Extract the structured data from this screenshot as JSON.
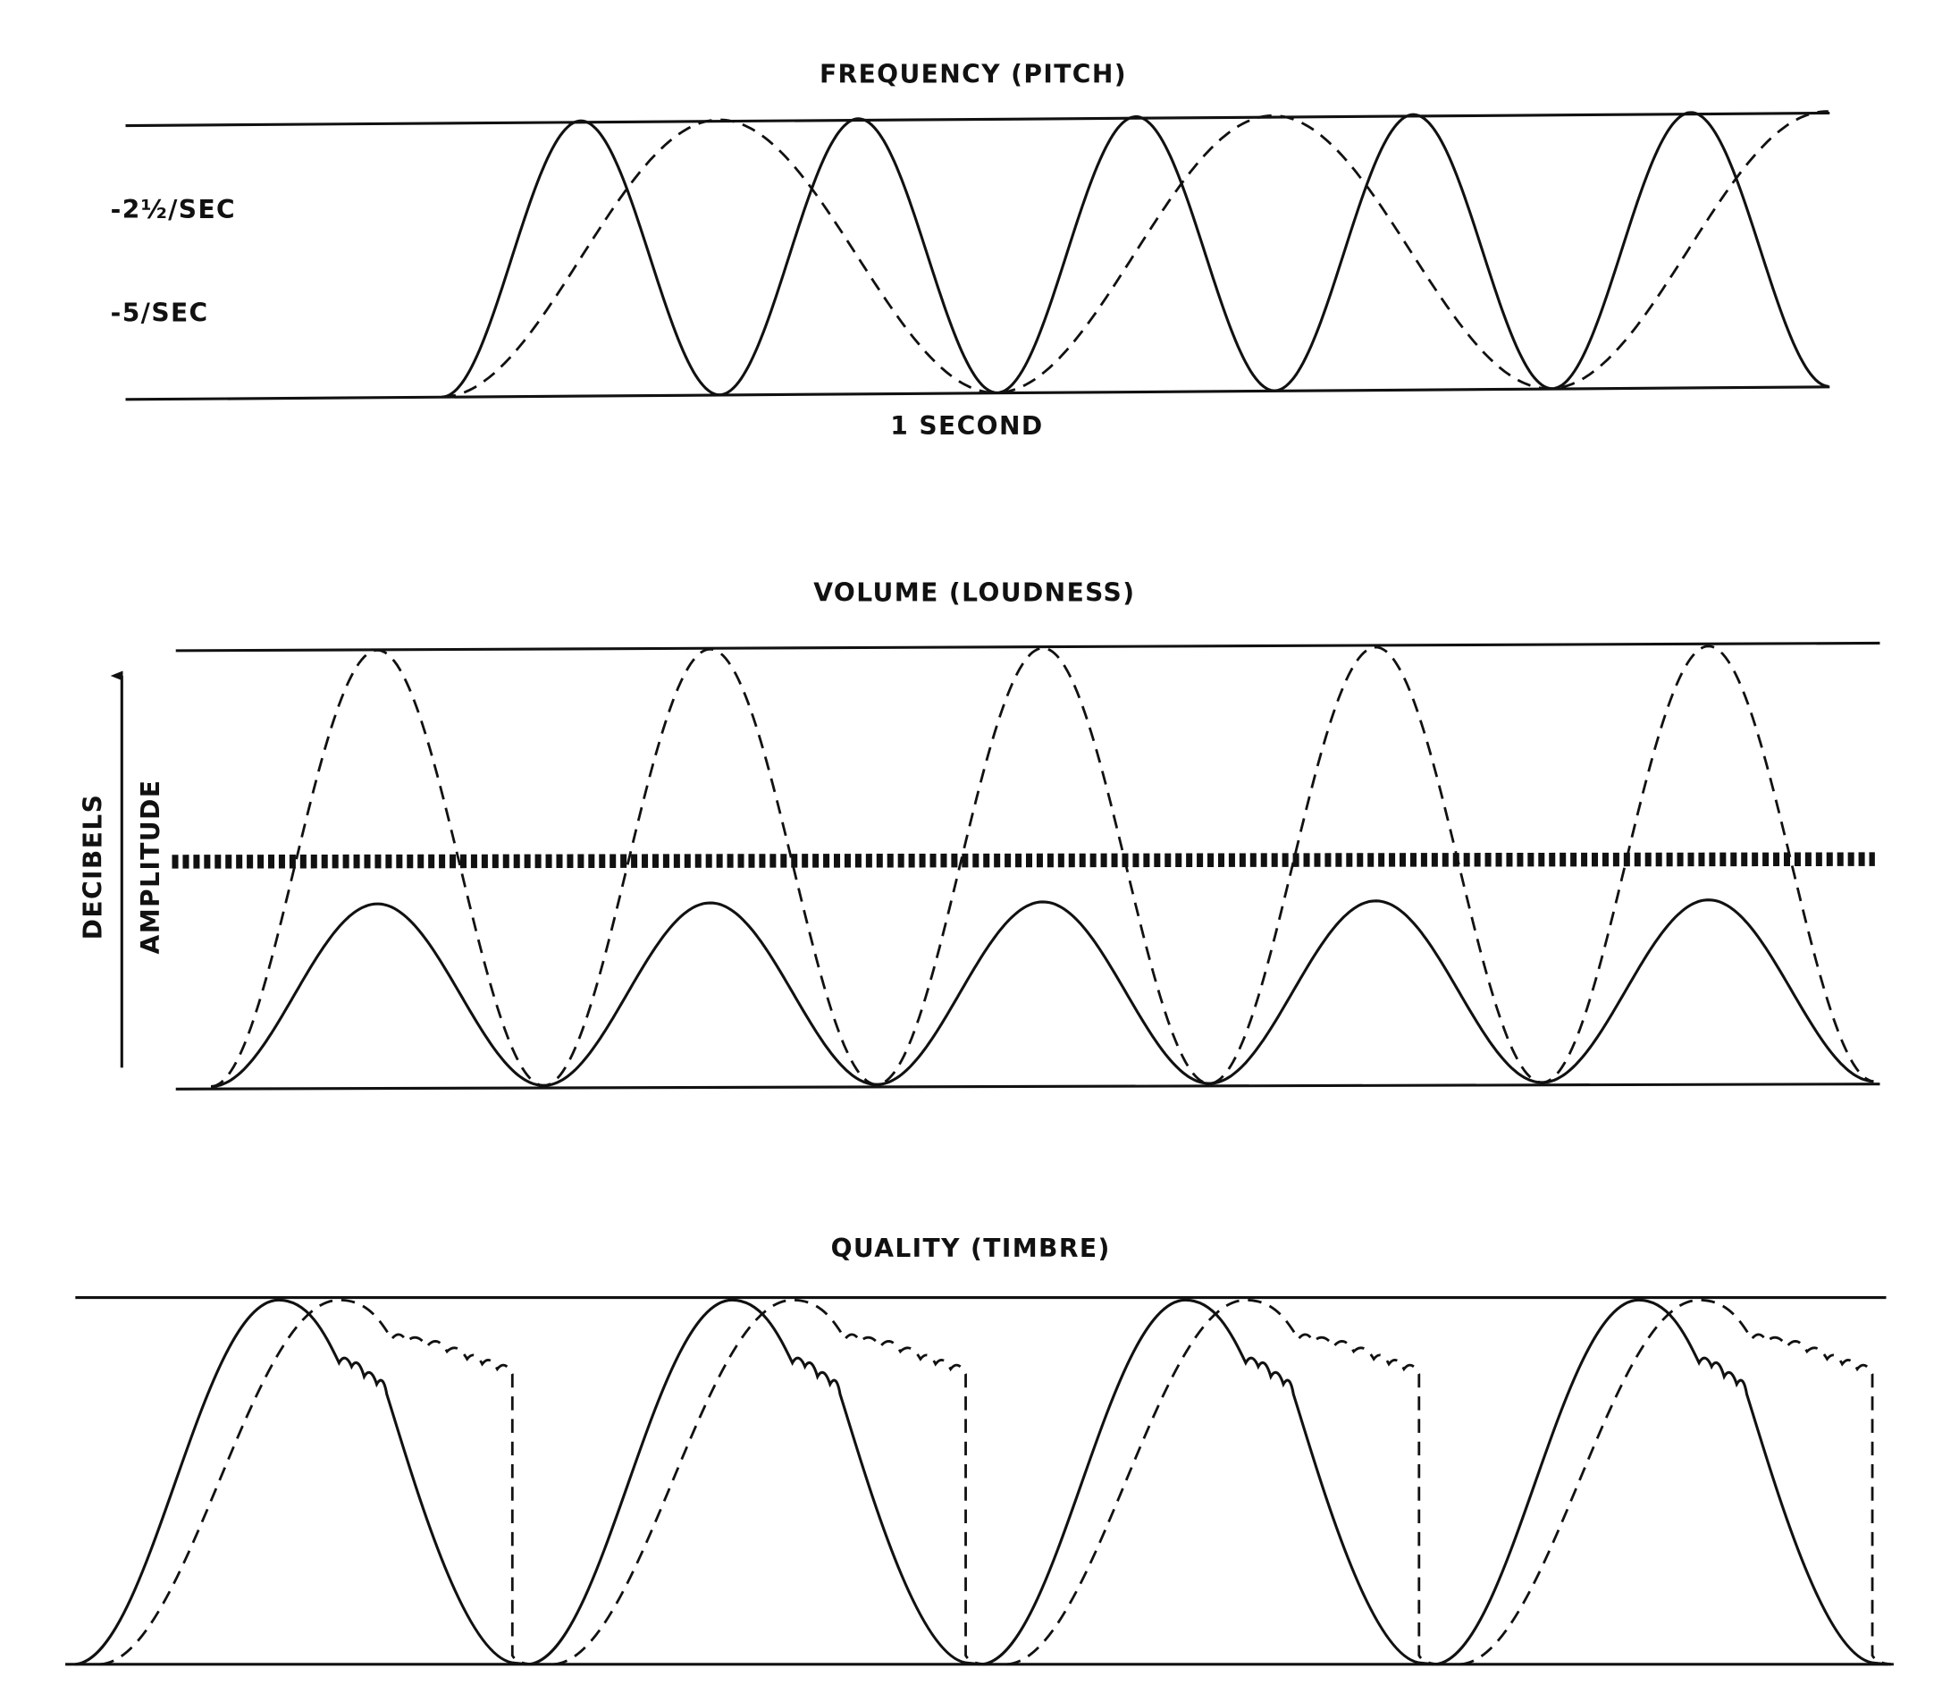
{
  "frequency": {
    "title": "FREQUENCY (PITCH)",
    "label_high": "-2½/SEC",
    "label_low": "-5/SEC",
    "time_label": "1 SECOND"
  },
  "volume": {
    "title": "VOLUME (LOUDNESS)",
    "axis_label": "DECIBELS",
    "axis_sublabel": "AMPLITUDE"
  },
  "quality": {
    "title": "QUALITY (TIMBRE)"
  }
}
